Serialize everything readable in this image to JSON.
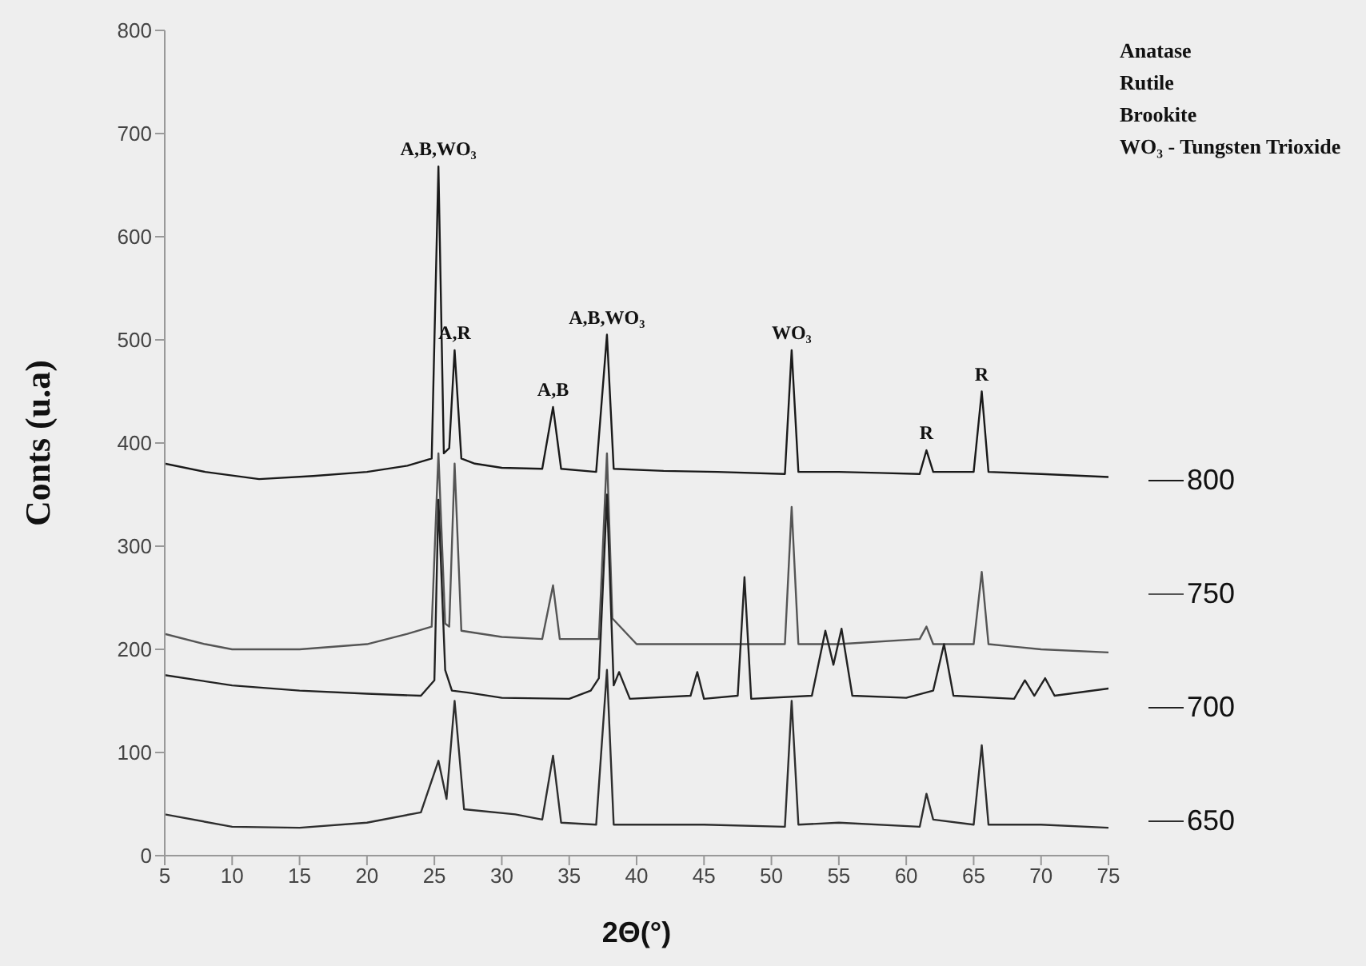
{
  "chart_data": {
    "type": "line",
    "xlabel": "2Θ(°)",
    "ylabel": "Conts (u.a)",
    "xlim": [
      5,
      75
    ],
    "xticks": [
      5,
      10,
      15,
      20,
      25,
      30,
      35,
      40,
      45,
      50,
      55,
      60,
      65,
      70,
      75
    ],
    "ylim": [
      0,
      800
    ],
    "yticks": [
      0,
      100,
      200,
      300,
      400,
      500,
      600,
      700,
      800
    ],
    "grid": false,
    "legend": "right",
    "marker": "none",
    "line_style": "solid",
    "series": [
      {
        "name": "800",
        "color": "#1a1a1a",
        "x": [
          5,
          8,
          12,
          16,
          20,
          23,
          24.8,
          25.3,
          25.7,
          26.1,
          26.5,
          27,
          28,
          30,
          33,
          33.8,
          34.4,
          37,
          37.8,
          38.3,
          42,
          46,
          51,
          51.5,
          52,
          55,
          58,
          61,
          61.5,
          62,
          65,
          65.6,
          66.1,
          70,
          75
        ],
        "values": [
          380,
          372,
          365,
          368,
          372,
          378,
          385,
          668,
          390,
          395,
          490,
          385,
          380,
          376,
          375,
          435,
          375,
          372,
          505,
          375,
          373,
          372,
          370,
          490,
          372,
          372,
          371,
          370,
          393,
          372,
          372,
          450,
          372,
          370,
          367
        ]
      },
      {
        "name": "750",
        "color": "#555555",
        "x": [
          5,
          8,
          10,
          15,
          20,
          23,
          24.8,
          25.3,
          25.8,
          26.1,
          26.5,
          27,
          30,
          33,
          33.8,
          34.3,
          37.2,
          37.8,
          38.2,
          40,
          45,
          51,
          51.5,
          52,
          55,
          61,
          61.5,
          62,
          65,
          65.6,
          66.1,
          70,
          75
        ],
        "values": [
          215,
          205,
          200,
          200,
          205,
          215,
          222,
          390,
          225,
          222,
          380,
          218,
          212,
          210,
          262,
          210,
          210,
          390,
          230,
          205,
          205,
          205,
          338,
          205,
          205,
          210,
          222,
          205,
          205,
          275,
          205,
          200,
          197
        ]
      },
      {
        "name": "700",
        "color": "#222222",
        "x": [
          5,
          10,
          15,
          20,
          24,
          25,
          25.3,
          25.8,
          26.3,
          27.5,
          30,
          35,
          36.6,
          37.2,
          37.8,
          38.3,
          38.7,
          39.5,
          44,
          44.5,
          45,
          47.5,
          48,
          48.5,
          53,
          54,
          54.6,
          55.2,
          56,
          60,
          62,
          62.8,
          63.5,
          68,
          68.8,
          69.5,
          70.3,
          71,
          75
        ],
        "values": [
          175,
          165,
          160,
          157,
          155,
          170,
          345,
          180,
          160,
          158,
          153,
          152,
          160,
          172,
          350,
          165,
          178,
          152,
          155,
          178,
          152,
          155,
          270,
          152,
          155,
          218,
          185,
          220,
          155,
          153,
          160,
          205,
          155,
          152,
          170,
          155,
          172,
          155,
          162
        ]
      },
      {
        "name": "650",
        "color": "#2e2e2e",
        "x": [
          5,
          10,
          15,
          20,
          24,
          25.3,
          25.9,
          26.5,
          27.2,
          31,
          33,
          33.8,
          34.4,
          37,
          37.8,
          38.3,
          45,
          51,
          51.5,
          52,
          55,
          61,
          61.5,
          62,
          65,
          65.6,
          66.1,
          70,
          75
        ],
        "values": [
          40,
          28,
          27,
          32,
          42,
          92,
          55,
          150,
          45,
          40,
          35,
          97,
          32,
          30,
          180,
          30,
          30,
          28,
          150,
          30,
          32,
          28,
          60,
          35,
          30,
          107,
          30,
          30,
          27
        ]
      }
    ],
    "annotations": [
      {
        "text": "A,B,WO₃",
        "x": 25.3,
        "y": 668
      },
      {
        "text": "A,R",
        "x": 26.5,
        "y": 490
      },
      {
        "text": "A,B",
        "x": 33.8,
        "y": 435
      },
      {
        "text": "A,B,WO₃",
        "x": 37.8,
        "y": 505
      },
      {
        "text": "WO₃",
        "x": 51.5,
        "y": 490
      },
      {
        "text": "R",
        "x": 61.5,
        "y": 393
      },
      {
        "text": "R",
        "x": 65.6,
        "y": 450
      },
      "Anatase",
      "Rutile",
      "Brookite",
      "WO₃ - Tungsten Trioxide"
    ]
  }
}
